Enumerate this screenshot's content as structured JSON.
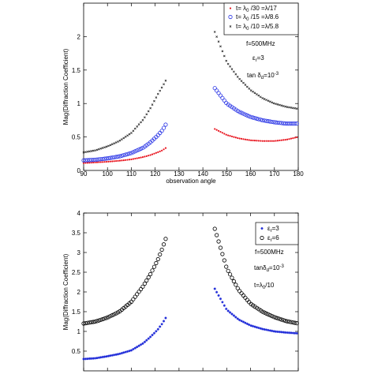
{
  "chart_data": [
    {
      "type": "scatter",
      "xlabel": "observation angle",
      "ylabel": "Mag(Diffraction Coefficient)",
      "xlim": [
        90,
        180
      ],
      "ylim": [
        0,
        2.5
      ],
      "xticks": [
        "90",
        "100",
        "110",
        "120",
        "130",
        "140",
        "150",
        "160",
        "170",
        "180"
      ],
      "yticks": [
        "0",
        "0.5",
        "1",
        "1.5",
        "2"
      ],
      "grid": false,
      "legend_placement": "top-right",
      "annotations": [
        {
          "id": "freq",
          "text": "f=500MHz"
        },
        {
          "id": "eps",
          "base": "ε",
          "sub": "r",
          "rest": "=3"
        },
        {
          "id": "tan",
          "base": "tan δ",
          "sub": "d",
          "rest": "=10",
          "sup": "-3"
        }
      ],
      "series": [
        {
          "name": "t=λ0/30 =λ/17",
          "legend_parts": [
            "t= λ",
            "0",
            " /30 =λ/17"
          ],
          "marker": "dot",
          "color": "#e8141e",
          "left": {
            "x": [
              90,
              95,
              100,
              105,
              110,
              115,
              118,
              121,
              123,
              125
            ],
            "y": [
              0.11,
              0.12,
              0.13,
              0.145,
              0.165,
              0.2,
              0.23,
              0.27,
              0.3,
              0.35
            ]
          },
          "right": {
            "x": [
              145,
              150,
              155,
              160,
              165,
              170,
              175,
              180
            ],
            "y": [
              0.62,
              0.53,
              0.48,
              0.45,
              0.44,
              0.44,
              0.46,
              0.5
            ]
          }
        },
        {
          "name": "t=λ0/15 =λ/8.6",
          "legend_parts": [
            "t= λ",
            "0",
            " /15 =λ/8.6"
          ],
          "marker": "circle",
          "color": "#2a35e6",
          "left": {
            "x": [
              90,
              95,
              100,
              105,
              110,
              115,
              118,
              121,
              123,
              125
            ],
            "y": [
              0.15,
              0.16,
              0.18,
              0.21,
              0.26,
              0.34,
              0.42,
              0.52,
              0.6,
              0.72
            ]
          },
          "right": {
            "x": [
              145,
              150,
              155,
              160,
              165,
              170,
              175,
              180
            ],
            "y": [
              1.23,
              1.0,
              0.88,
              0.8,
              0.75,
              0.72,
              0.7,
              0.7
            ]
          }
        },
        {
          "name": "t=λ0/10 =λ/5.8",
          "legend_parts": [
            "t= λ",
            "0",
            " /10 =λ/5.8"
          ],
          "marker": "x",
          "color": "#1a1a1a",
          "left": {
            "x": [
              90,
              95,
              100,
              105,
              110,
              115,
              118,
              121,
              123,
              125
            ],
            "y": [
              0.27,
              0.3,
              0.36,
              0.44,
              0.56,
              0.76,
              0.93,
              1.13,
              1.25,
              1.38
            ]
          },
          "right": {
            "x": [
              145,
              150,
              155,
              160,
              165,
              170,
              175,
              180
            ],
            "y": [
              2.07,
              1.62,
              1.38,
              1.2,
              1.08,
              1.0,
              0.95,
              0.92
            ]
          }
        }
      ]
    },
    {
      "type": "scatter",
      "xlabel": "",
      "ylabel": "Mag(Diffraction Coefficient)",
      "xlim": [
        90,
        180
      ],
      "ylim": [
        0,
        4
      ],
      "yticks": [
        "0.5",
        "1",
        "1.5",
        "2",
        "2.5",
        "3",
        "3.5",
        "4"
      ],
      "grid": false,
      "legend_placement": "top-right",
      "annotations": [
        {
          "id": "freq",
          "text": "f=500MHz"
        },
        {
          "id": "tan",
          "base": "tanδ",
          "sub": "d",
          "rest": "=10",
          "sup": "-3"
        },
        {
          "id": "thick",
          "base": "t=λ",
          "sub": "0",
          "rest": "/10"
        }
      ],
      "series": [
        {
          "name": "εr=3",
          "legend_parts": [
            "ε",
            "r",
            "=3"
          ],
          "marker": "star",
          "color": "#1e2ad8",
          "left": {
            "x": [
              90,
              95,
              100,
              105,
              110,
              115,
              118,
              121,
              123,
              125
            ],
            "y": [
              0.3,
              0.32,
              0.37,
              0.43,
              0.52,
              0.7,
              0.86,
              1.04,
              1.2,
              1.4
            ]
          },
          "right": {
            "x": [
              145,
              150,
              155,
              160,
              165,
              170,
              175,
              180
            ],
            "y": [
              2.08,
              1.55,
              1.3,
              1.15,
              1.06,
              1.0,
              0.97,
              0.95
            ]
          }
        },
        {
          "name": "εr=6",
          "legend_parts": [
            "ε",
            "r",
            "=6"
          ],
          "marker": "circle",
          "color": "#000000",
          "left": {
            "x": [
              90,
              95,
              100,
              105,
              110,
              115,
              118,
              121,
              123,
              125
            ],
            "y": [
              1.2,
              1.25,
              1.35,
              1.5,
              1.75,
              2.15,
              2.45,
              2.8,
              3.1,
              3.45
            ]
          },
          "right": {
            "x": [
              145,
              150,
              155,
              160,
              165,
              170,
              175,
              180
            ],
            "y": [
              3.6,
              2.6,
              2.05,
              1.7,
              1.5,
              1.36,
              1.26,
              1.2
            ]
          }
        }
      ]
    }
  ]
}
